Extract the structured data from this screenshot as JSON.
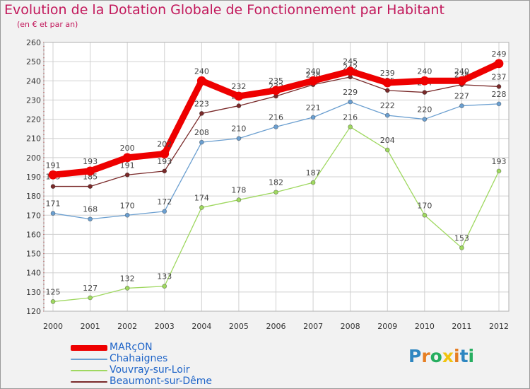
{
  "title": "Evolution de la Dotation Globale de Fonctionnement par Habitant",
  "subtitle": "(en € et par an)",
  "logo_text": "Proxiti",
  "colors": {
    "background": "#f2f2f2",
    "plot_background": "#ffffff",
    "title": "#c2185b",
    "grid": "#d0d0d0",
    "legend_text": "#1e64c8"
  },
  "chart_data": {
    "type": "line",
    "title": "Evolution de la Dotation Globale de Fonctionnement par Habitant",
    "subtitle": "(en € et par an)",
    "xlabel": "",
    "ylabel": "",
    "ylim": [
      120,
      260
    ],
    "yticks": [
      120,
      130,
      140,
      150,
      160,
      170,
      180,
      190,
      200,
      210,
      220,
      230,
      240,
      250,
      260
    ],
    "grid": true,
    "legend_position": "bottom-left",
    "categories": [
      "2000",
      "2001",
      "2002",
      "2003",
      "2004",
      "2005",
      "2006",
      "2007",
      "2008",
      "2009",
      "2010",
      "2011",
      "2012"
    ],
    "series": [
      {
        "name": "MARçON",
        "color": "#ee0000",
        "emphasis": true,
        "values": [
          191,
          193,
          200,
          202,
          240,
          232,
          235,
          240,
          245,
          239,
          240,
          240,
          249
        ],
        "labels": [
          "191",
          "193",
          "200",
          "202",
          "240",
          "232",
          "235",
          "240",
          "245",
          "239",
          "240",
          "240",
          "249"
        ]
      },
      {
        "name": "Chahaignes",
        "color": "#6b9fd0",
        "emphasis": false,
        "values": [
          171,
          168,
          170,
          172,
          208,
          210,
          216,
          221,
          229,
          222,
          220,
          227,
          228
        ],
        "labels": [
          "171",
          "168",
          "170",
          "172",
          "208",
          "210",
          "216",
          "221",
          "229",
          "222",
          "220",
          "227",
          "228"
        ]
      },
      {
        "name": "Vouvray-sur-Loir",
        "color": "#9fd860",
        "emphasis": false,
        "values": [
          125,
          127,
          132,
          133,
          174,
          178,
          182,
          187,
          216,
          204,
          170,
          153,
          193
        ],
        "labels": [
          "125",
          "127",
          "132",
          "133",
          "174",
          "178",
          "182",
          "187",
          "216",
          "204",
          "170",
          "153",
          "193"
        ]
      },
      {
        "name": "Beaumont-sur-Dême",
        "color": "#7a2a2a",
        "emphasis": false,
        "values": [
          185,
          185,
          191,
          193,
          223,
          227,
          232,
          238,
          242,
          235,
          234,
          238,
          237
        ],
        "labels": [
          "185",
          "185",
          "191",
          "193",
          "223",
          "227",
          "232",
          "238",
          "242",
          "235",
          "234",
          "238",
          "237"
        ]
      }
    ]
  }
}
